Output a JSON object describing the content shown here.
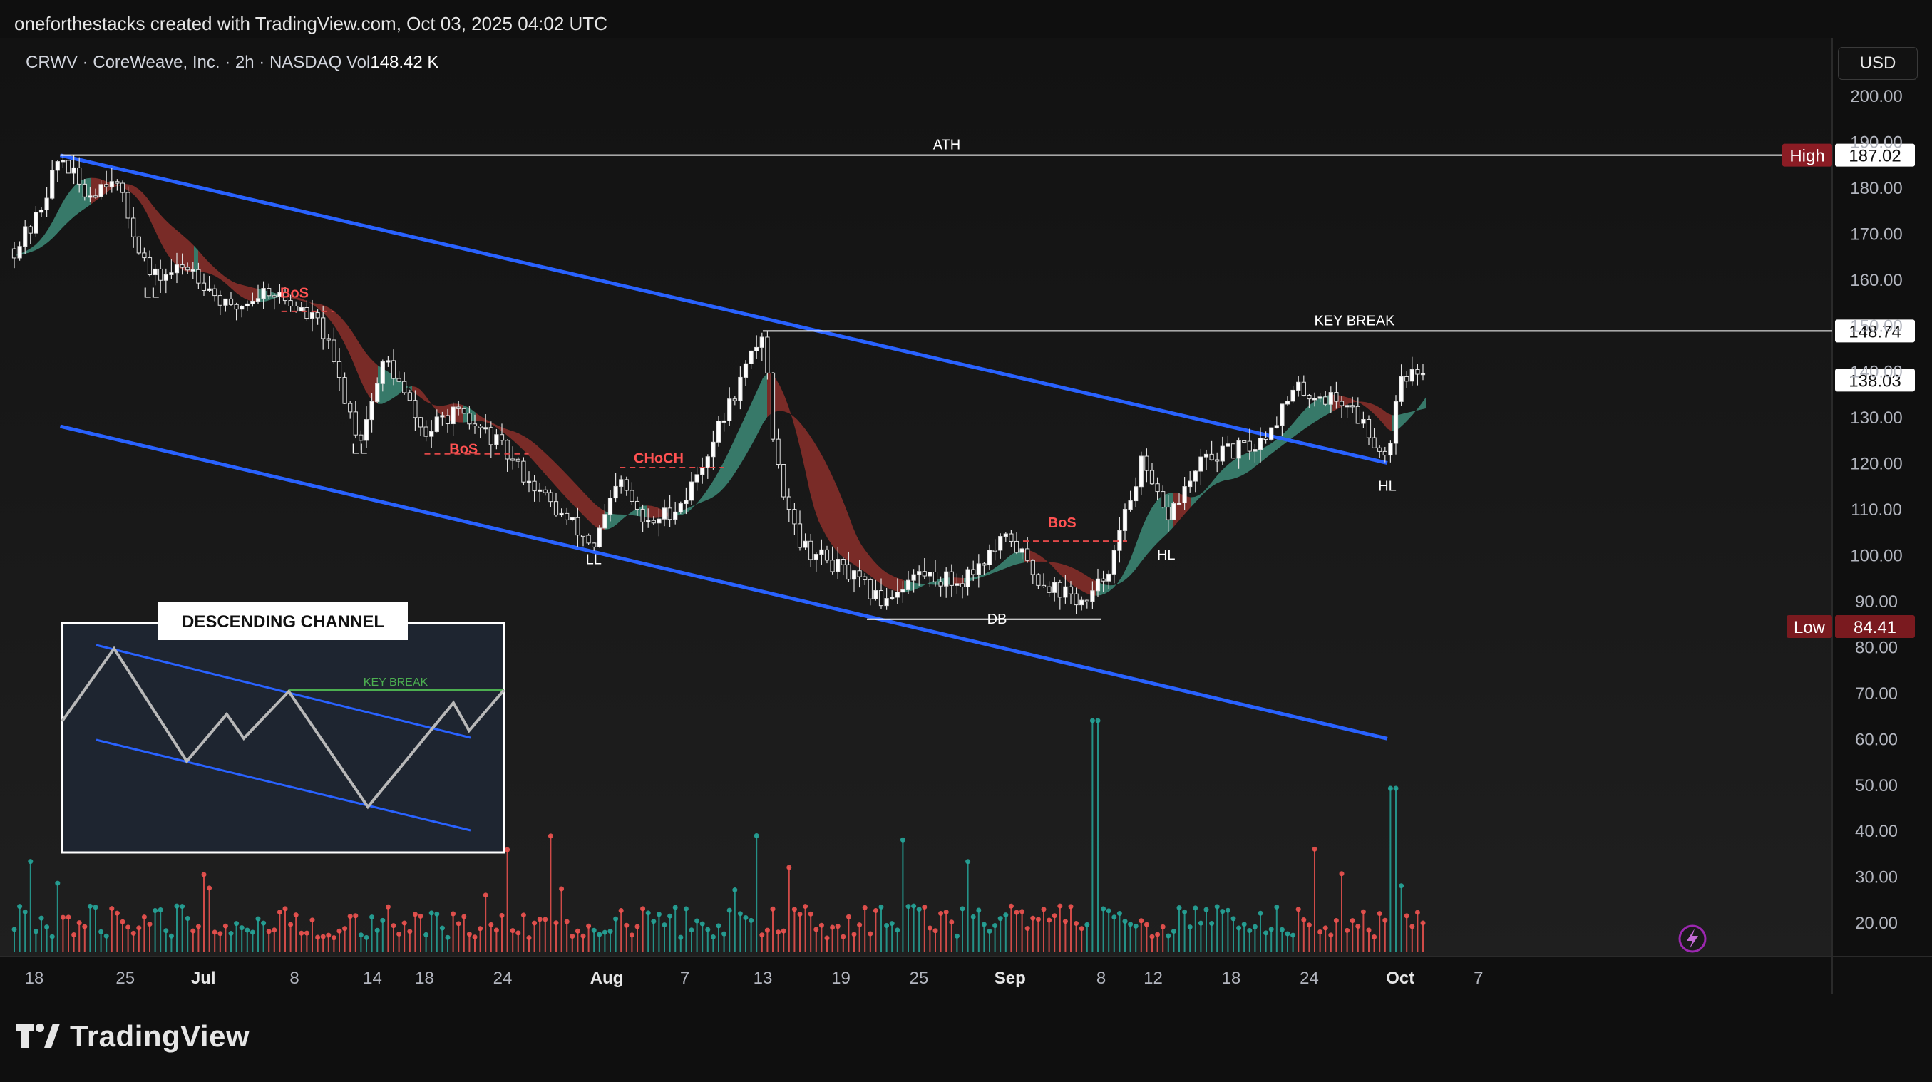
{
  "header": {
    "attribution": "oneforthestacks created with TradingView.com, Oct 03, 2025 04:02 UTC"
  },
  "symbol": {
    "ticker": "CRWV",
    "name": "CoreWeave, Inc.",
    "interval": "2h",
    "exchange": "NASDAQ",
    "vol_label": "Vol",
    "vol_value": "148.42 K",
    "separator": "·"
  },
  "currency": "USD",
  "brand": {
    "name": "TradingView"
  },
  "colors": {
    "up": "#26a69a",
    "down": "#ef5350",
    "channel": "#2962ff",
    "ribbon_up": "#3d8b78",
    "ribbon_down": "#8b2f2a",
    "label_red": "#ff5252",
    "high_badge": "#8b1c24",
    "low_badge": "#7a1a1f"
  },
  "chart_data": {
    "type": "candlestick",
    "symbol": "CRWV",
    "interval": "2h",
    "y_axis": {
      "ticks": [
        "200.00",
        "190.00",
        "180.00",
        "170.00",
        "160.00",
        "150.00",
        "140.00",
        "130.00",
        "120.00",
        "110.00",
        "100.00",
        "90.00",
        "80.00",
        "70.00",
        "60.00",
        "50.00",
        "40.00",
        "30.00",
        "20.00"
      ],
      "ylim": [
        10,
        205
      ]
    },
    "x_axis": {
      "ticks": [
        {
          "label": "18",
          "date": "2025-06-18"
        },
        {
          "label": "25",
          "date": "2025-06-25"
        },
        {
          "label": "Jul",
          "date": "2025-07-01",
          "bold": true
        },
        {
          "label": "8",
          "date": "2025-07-08"
        },
        {
          "label": "14",
          "date": "2025-07-14"
        },
        {
          "label": "18",
          "date": "2025-07-18"
        },
        {
          "label": "24",
          "date": "2025-07-24"
        },
        {
          "label": "Aug",
          "date": "2025-08-01",
          "bold": true
        },
        {
          "label": "7",
          "date": "2025-08-07"
        },
        {
          "label": "13",
          "date": "2025-08-13"
        },
        {
          "label": "19",
          "date": "2025-08-19"
        },
        {
          "label": "25",
          "date": "2025-08-25"
        },
        {
          "label": "Sep",
          "date": "2025-09-01",
          "bold": true
        },
        {
          "label": "8",
          "date": "2025-09-08"
        },
        {
          "label": "12",
          "date": "2025-09-12"
        },
        {
          "label": "18",
          "date": "2025-09-18"
        },
        {
          "label": "24",
          "date": "2025-09-24"
        },
        {
          "label": "Oct",
          "date": "2025-10-01",
          "bold": true
        },
        {
          "label": "7",
          "date": "2025-10-07"
        }
      ]
    },
    "price_path": [
      {
        "date": "2025-06-16",
        "price": 165
      },
      {
        "date": "2025-06-18",
        "price": 172
      },
      {
        "date": "2025-06-20",
        "price": 187
      },
      {
        "date": "2025-06-22",
        "price": 178
      },
      {
        "date": "2025-06-24",
        "price": 183
      },
      {
        "date": "2025-06-27",
        "price": 160
      },
      {
        "date": "2025-06-30",
        "price": 163
      },
      {
        "date": "2025-07-03",
        "price": 153
      },
      {
        "date": "2025-07-06",
        "price": 158
      },
      {
        "date": "2025-07-10",
        "price": 150
      },
      {
        "date": "2025-07-13",
        "price": 125
      },
      {
        "date": "2025-07-15",
        "price": 143
      },
      {
        "date": "2025-07-18",
        "price": 126
      },
      {
        "date": "2025-07-20",
        "price": 131
      },
      {
        "date": "2025-07-23",
        "price": 126
      },
      {
        "date": "2025-07-28",
        "price": 110
      },
      {
        "date": "2025-07-31",
        "price": 102
      },
      {
        "date": "2025-08-02",
        "price": 116
      },
      {
        "date": "2025-08-04",
        "price": 106
      },
      {
        "date": "2025-08-07",
        "price": 112
      },
      {
        "date": "2025-08-10",
        "price": 130
      },
      {
        "date": "2025-08-13",
        "price": 148.74
      },
      {
        "date": "2025-08-14",
        "price": 120
      },
      {
        "date": "2025-08-16",
        "price": 102
      },
      {
        "date": "2025-08-19",
        "price": 97
      },
      {
        "date": "2025-08-22",
        "price": 90
      },
      {
        "date": "2025-08-25",
        "price": 96
      },
      {
        "date": "2025-08-28",
        "price": 94
      },
      {
        "date": "2025-09-01",
        "price": 104
      },
      {
        "date": "2025-09-03",
        "price": 95
      },
      {
        "date": "2025-09-07",
        "price": 89
      },
      {
        "date": "2025-09-09",
        "price": 100
      },
      {
        "date": "2025-09-11",
        "price": 120
      },
      {
        "date": "2025-09-13",
        "price": 108
      },
      {
        "date": "2025-09-16",
        "price": 121
      },
      {
        "date": "2025-09-20",
        "price": 124
      },
      {
        "date": "2025-09-23",
        "price": 136
      },
      {
        "date": "2025-09-27",
        "price": 133
      },
      {
        "date": "2025-09-30",
        "price": 121
      },
      {
        "date": "2025-10-01",
        "price": 140
      },
      {
        "date": "2025-10-03",
        "price": 138.03
      }
    ],
    "levels": [
      {
        "label": "ATH",
        "price": 187.02,
        "badge": "High",
        "value": "187.02"
      },
      {
        "label": "KEY BREAK",
        "price": 148.74,
        "value": "148.74"
      },
      {
        "label": "",
        "price": 138.03,
        "value": "138.03"
      },
      {
        "label": "",
        "price": 84.41,
        "badge": "Low",
        "value": "84.41"
      }
    ],
    "channel_lines": [
      {
        "from": {
          "date": "2025-06-20",
          "price": 187
        },
        "to": {
          "date": "2025-09-30",
          "price": 120
        }
      },
      {
        "from": {
          "date": "2025-06-20",
          "price": 128
        },
        "to": {
          "date": "2025-09-30",
          "price": 60
        }
      }
    ],
    "structure_labels": [
      {
        "text": "LL",
        "date": "2025-06-27",
        "price": 156,
        "color": "white"
      },
      {
        "text": "BoS",
        "date": "2025-07-08",
        "price": 156,
        "color": "red"
      },
      {
        "text": "LL",
        "date": "2025-07-13",
        "price": 122,
        "color": "white"
      },
      {
        "text": "BoS",
        "date": "2025-07-21",
        "price": 122,
        "color": "red"
      },
      {
        "text": "LL",
        "date": "2025-07-31",
        "price": 98,
        "color": "white"
      },
      {
        "text": "CHoCH",
        "date": "2025-08-05",
        "price": 120,
        "color": "red"
      },
      {
        "text": "DB",
        "date": "2025-08-31",
        "price": 85,
        "color": "white"
      },
      {
        "text": "BoS",
        "date": "2025-09-05",
        "price": 106,
        "color": "red"
      },
      {
        "text": "HL",
        "date": "2025-09-13",
        "price": 99,
        "color": "white"
      },
      {
        "text": "HL",
        "date": "2025-09-30",
        "price": 114,
        "color": "white"
      }
    ],
    "inset": {
      "title": "DESCENDING CHANNEL",
      "key_break_label": "KEY BREAK"
    },
    "volume": {
      "max_label": "volume bars (teal up, red down)"
    }
  }
}
